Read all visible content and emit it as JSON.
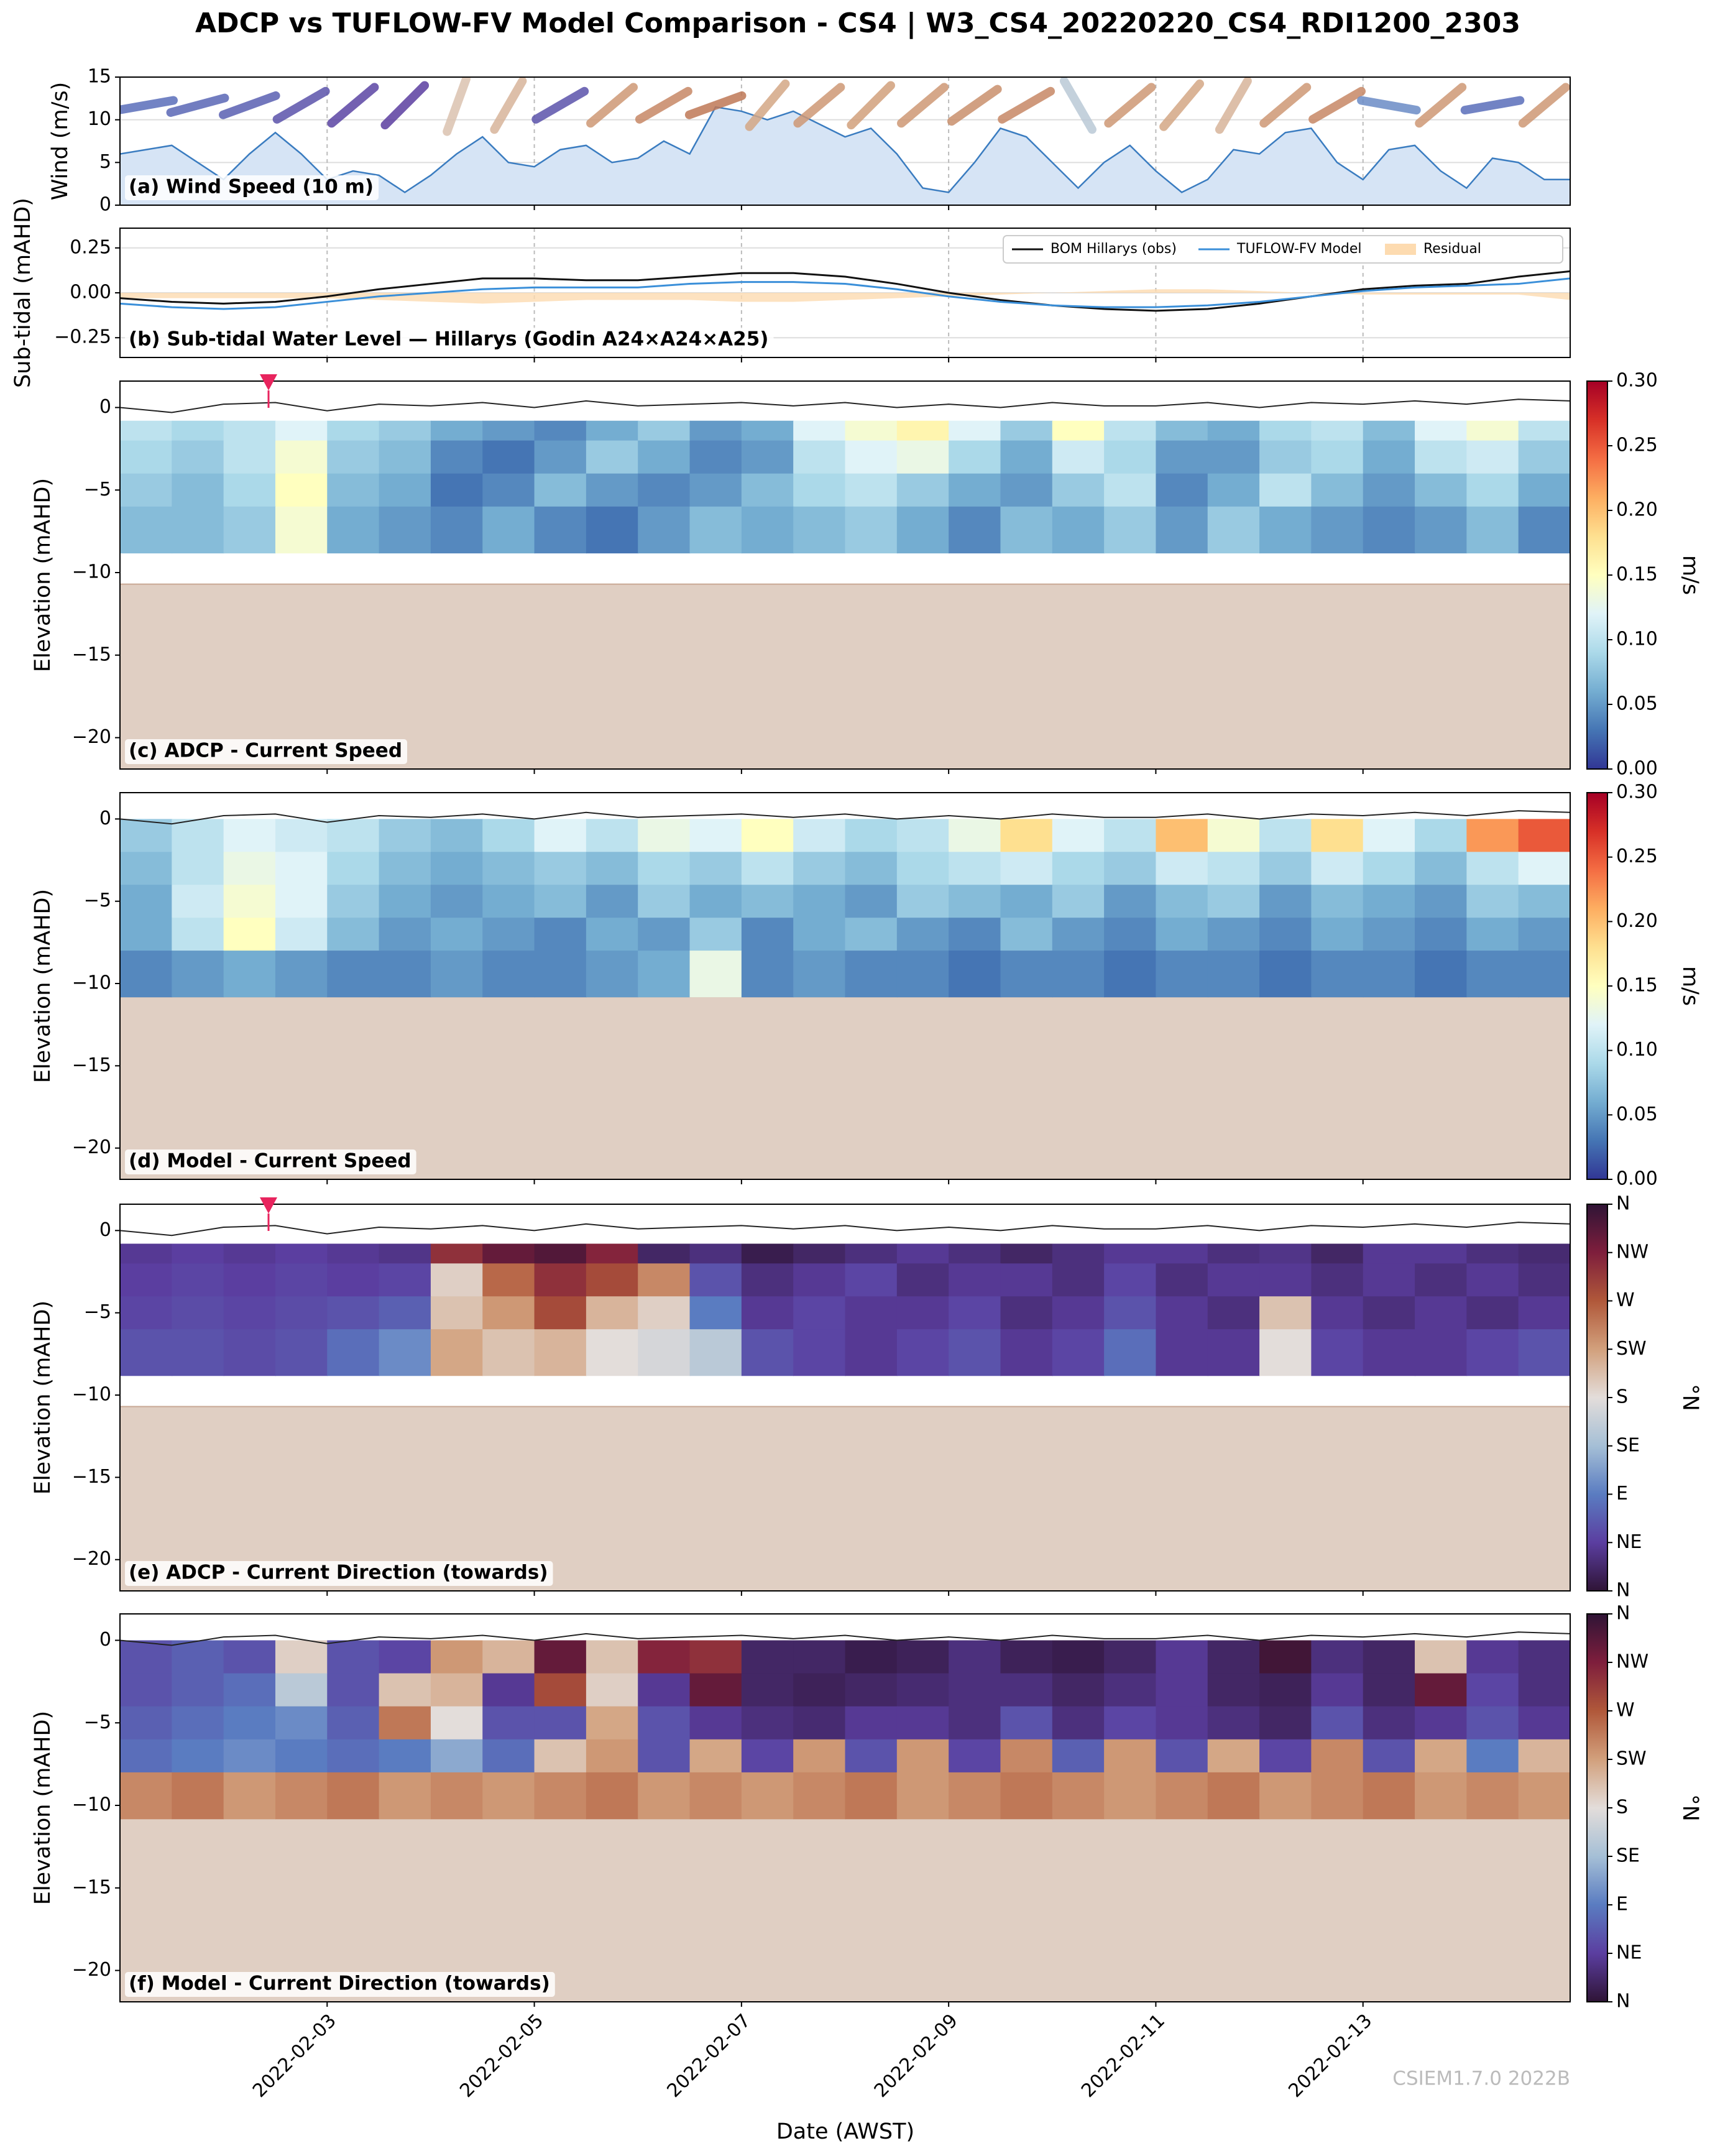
{
  "title": "ADCP vs TUFLOW-FV Model Comparison - CS4 | W3_CS4_20220220_CS4_RDI1200_2303",
  "xlabel": "Date (AWST)",
  "watermark": "CSIEM1.7.0 2022B",
  "xlim": [
    "2022-02-01",
    "2022-02-15"
  ],
  "xticks": [
    "2022-02-03",
    "2022-02-05",
    "2022-02-07",
    "2022-02-09",
    "2022-02-11",
    "2022-02-13"
  ],
  "surface": [
    0.0,
    -0.3,
    0.2,
    0.3,
    -0.2,
    0.2,
    0.1,
    0.3,
    0.0,
    0.4,
    0.1,
    0.2,
    0.3,
    0.1,
    0.3,
    0.0,
    0.2,
    0.0,
    0.3,
    0.1,
    0.1,
    0.3,
    0.0,
    0.3,
    0.2,
    0.4,
    0.2,
    0.5,
    0.4
  ],
  "chart_data": [
    {
      "type": "area",
      "label": "(a) Wind Speed (10 m)",
      "ylabel": "Wind (m/s)",
      "ylim": [
        0,
        15
      ],
      "yticks": [
        0,
        5,
        10,
        15
      ],
      "grid": true,
      "color": "#3a7cc0",
      "fill": "#d6e4f5",
      "values": [
        6,
        6.5,
        7,
        5,
        3,
        6,
        8.5,
        6,
        3,
        4,
        3.5,
        1.5,
        3.5,
        6,
        8,
        5,
        4.5,
        6.5,
        7,
        5,
        5.5,
        7.5,
        6,
        11.5,
        11,
        10,
        11,
        9.5,
        8,
        9,
        6,
        2,
        1.5,
        5,
        9,
        8,
        5,
        2,
        5,
        7,
        4,
        1.5,
        3,
        6.5,
        6,
        8.5,
        9,
        5,
        3,
        6.5,
        7,
        4,
        2,
        5.5,
        5,
        3,
        3
      ],
      "directions": [
        80,
        75,
        70,
        60,
        50,
        45,
        200,
        210,
        60,
        230,
        240,
        250,
        220,
        230,
        225,
        230,
        235,
        240,
        150,
        230,
        220,
        210,
        230,
        240,
        100,
        230,
        80,
        230
      ],
      "arrow_colormap": [
        "#2f1436",
        "#5b3ea0",
        "#5a7cc1",
        "#a5bfd6",
        "#e3ddda",
        "#d2a07c",
        "#b0583a",
        "#7e1e3c",
        "#2f1436"
      ]
    },
    {
      "type": "line",
      "label": "(b) Sub-tidal Water Level — Hillarys (Godin A24×A24×A25)",
      "ylabel": "Sub-tidal (mAHD)",
      "ylim": [
        -0.36,
        0.36
      ],
      "yticks": [
        {
          "value": -0.25,
          "label": "−0.25"
        },
        {
          "value": 0,
          "label": "0.00"
        },
        {
          "value": 0.25,
          "label": "0.25"
        }
      ],
      "grid": true,
      "legend": "upper right",
      "series": [
        {
          "name": "BOM Hillarys (obs)",
          "color": "#111111",
          "values": [
            -0.03,
            -0.05,
            -0.06,
            -0.05,
            -0.02,
            0.02,
            0.05,
            0.08,
            0.08,
            0.07,
            0.07,
            0.09,
            0.11,
            0.11,
            0.09,
            0.05,
            0.0,
            -0.04,
            -0.07,
            -0.09,
            -0.1,
            -0.09,
            -0.06,
            -0.02,
            0.02,
            0.04,
            0.05,
            0.09,
            0.12
          ]
        },
        {
          "name": "TUFLOW-FV Model",
          "color": "#3a8fd9",
          "values": [
            -0.06,
            -0.08,
            -0.09,
            -0.08,
            -0.05,
            -0.02,
            0.0,
            0.02,
            0.03,
            0.03,
            0.03,
            0.05,
            0.06,
            0.06,
            0.05,
            0.02,
            -0.02,
            -0.05,
            -0.07,
            -0.08,
            -0.08,
            -0.07,
            -0.05,
            -0.02,
            0.01,
            0.03,
            0.04,
            0.05,
            0.08
          ]
        },
        {
          "name": "Residual",
          "color": "#fddbb0",
          "style": "band",
          "values": [
            -0.03,
            -0.03,
            -0.03,
            -0.03,
            -0.03,
            -0.04,
            -0.05,
            -0.06,
            -0.05,
            -0.04,
            -0.04,
            -0.04,
            -0.05,
            -0.05,
            -0.04,
            -0.03,
            -0.02,
            -0.01,
            0.0,
            0.01,
            0.02,
            0.02,
            0.01,
            0.0,
            -0.01,
            -0.01,
            -0.01,
            -0.01,
            -0.04
          ]
        }
      ]
    },
    {
      "type": "heatmap",
      "label": "(c) ADCP - Current Speed",
      "ylabel": "Elevation (mAHD)",
      "ylim": [
        -21.9,
        1.6
      ],
      "yticks": [
        {
          "value": -20,
          "label": "−20"
        },
        {
          "value": -15,
          "label": "−15"
        },
        {
          "value": -10,
          "label": "−10"
        },
        {
          "value": -5,
          "label": "−5"
        },
        0
      ],
      "cell_edges": [
        -0.8,
        -2,
        -4,
        -6,
        -8.8
      ],
      "seabed": -10.7,
      "seabed_color": "#e0cfc3",
      "zlim": [
        0,
        0.3
      ],
      "colormap": [
        "#313695",
        "#4575b4",
        "#74add1",
        "#abd9e9",
        "#e0f3f8",
        "#ffffbf",
        "#fee090",
        "#fdae61",
        "#f46d43",
        "#d73027",
        "#a50026"
      ],
      "cbar_label": "m/s",
      "cbar_ticks": [
        {
          "value": 0,
          "label": "0.00"
        },
        {
          "value": 0.05,
          "label": "0.05"
        },
        {
          "value": 0.1,
          "label": "0.10"
        },
        {
          "value": 0.15,
          "label": "0.15"
        },
        {
          "value": 0.2,
          "label": "0.20"
        },
        {
          "value": 0.25,
          "label": "0.25"
        },
        {
          "value": 0.3,
          "label": "0.30"
        }
      ],
      "z": [
        [
          0.1,
          0.09,
          0.1,
          0.12,
          0.09,
          0.08,
          0.06,
          0.05,
          0.04,
          0.06,
          0.08,
          0.05,
          0.06,
          0.12,
          0.14,
          0.16,
          0.12,
          0.08,
          0.15,
          0.1,
          0.07,
          0.06,
          0.09,
          0.1,
          0.07,
          0.12,
          0.14,
          0.1
        ],
        [
          0.09,
          0.08,
          0.1,
          0.14,
          0.08,
          0.07,
          0.04,
          0.03,
          0.05,
          0.08,
          0.06,
          0.04,
          0.05,
          0.1,
          0.12,
          0.13,
          0.09,
          0.06,
          0.11,
          0.09,
          0.05,
          0.05,
          0.08,
          0.09,
          0.06,
          0.1,
          0.11,
          0.08
        ],
        [
          0.08,
          0.07,
          0.09,
          0.15,
          0.07,
          0.06,
          0.03,
          0.04,
          0.07,
          0.05,
          0.04,
          0.05,
          0.07,
          0.09,
          0.1,
          0.08,
          0.06,
          0.05,
          0.08,
          0.1,
          0.04,
          0.06,
          0.1,
          0.07,
          0.05,
          0.07,
          0.09,
          0.06
        ],
        [
          0.07,
          0.07,
          0.08,
          0.14,
          0.06,
          0.05,
          0.04,
          0.06,
          0.04,
          0.03,
          0.05,
          0.07,
          0.06,
          0.07,
          0.08,
          0.06,
          0.04,
          0.07,
          0.06,
          0.08,
          0.05,
          0.08,
          0.06,
          0.05,
          0.04,
          0.05,
          0.07,
          0.04
        ]
      ]
    },
    {
      "type": "heatmap",
      "label": "(d) Model - Current Speed",
      "ylabel": "Elevation (mAHD)",
      "ylim": [
        -21.9,
        1.6
      ],
      "yticks": [
        {
          "value": -20,
          "label": "−20"
        },
        {
          "value": -15,
          "label": "−15"
        },
        {
          "value": -10,
          "label": "−10"
        },
        {
          "value": -5,
          "label": "−5"
        },
        0
      ],
      "cell_edges": [
        0,
        -2,
        -4,
        -6,
        -8,
        -10.8
      ],
      "seabed": -10.8,
      "seabed_color": "#e0cfc3",
      "zlim": [
        0,
        0.3
      ],
      "colormap": [
        "#313695",
        "#4575b4",
        "#74add1",
        "#abd9e9",
        "#e0f3f8",
        "#ffffbf",
        "#fee090",
        "#fdae61",
        "#f46d43",
        "#d73027",
        "#a50026"
      ],
      "cbar_label": "m/s",
      "cbar_ticks": [
        {
          "value": 0,
          "label": "0.00"
        },
        {
          "value": 0.05,
          "label": "0.05"
        },
        {
          "value": 0.1,
          "label": "0.10"
        },
        {
          "value": 0.15,
          "label": "0.15"
        },
        {
          "value": 0.2,
          "label": "0.20"
        },
        {
          "value": 0.25,
          "label": "0.25"
        },
        {
          "value": 0.3,
          "label": "0.30"
        }
      ],
      "z": [
        [
          0.08,
          0.1,
          0.12,
          0.11,
          0.1,
          0.08,
          0.07,
          0.09,
          0.12,
          0.1,
          0.13,
          0.12,
          0.15,
          0.11,
          0.09,
          0.1,
          0.13,
          0.18,
          0.12,
          0.1,
          0.2,
          0.14,
          0.1,
          0.18,
          0.12,
          0.09,
          0.22,
          0.25
        ],
        [
          0.07,
          0.1,
          0.13,
          0.12,
          0.09,
          0.07,
          0.06,
          0.07,
          0.08,
          0.07,
          0.09,
          0.08,
          0.1,
          0.08,
          0.07,
          0.09,
          0.1,
          0.11,
          0.09,
          0.08,
          0.11,
          0.1,
          0.08,
          0.11,
          0.09,
          0.07,
          0.1,
          0.12
        ],
        [
          0.06,
          0.11,
          0.14,
          0.12,
          0.08,
          0.06,
          0.05,
          0.06,
          0.07,
          0.05,
          0.08,
          0.06,
          0.07,
          0.06,
          0.05,
          0.08,
          0.07,
          0.06,
          0.08,
          0.05,
          0.07,
          0.08,
          0.05,
          0.07,
          0.06,
          0.05,
          0.08,
          0.07
        ],
        [
          0.06,
          0.1,
          0.15,
          0.11,
          0.07,
          0.05,
          0.06,
          0.05,
          0.04,
          0.06,
          0.05,
          0.08,
          0.04,
          0.06,
          0.07,
          0.05,
          0.04,
          0.07,
          0.05,
          0.04,
          0.06,
          0.05,
          0.04,
          0.06,
          0.05,
          0.04,
          0.06,
          0.05
        ],
        [
          0.04,
          0.05,
          0.06,
          0.05,
          0.04,
          0.04,
          0.05,
          0.04,
          0.04,
          0.05,
          0.06,
          0.13,
          0.04,
          0.05,
          0.04,
          0.04,
          0.03,
          0.04,
          0.04,
          0.03,
          0.04,
          0.04,
          0.03,
          0.04,
          0.04,
          0.03,
          0.04,
          0.04
        ]
      ]
    },
    {
      "type": "heatmap",
      "label": "(e) ADCP - Current Direction (towards)",
      "ylabel": "Elevation (mAHD)",
      "ylim": [
        -21.9,
        1.6
      ],
      "yticks": [
        {
          "value": -20,
          "label": "−20"
        },
        {
          "value": -15,
          "label": "−15"
        },
        {
          "value": -10,
          "label": "−10"
        },
        {
          "value": -5,
          "label": "−5"
        },
        0
      ],
      "cell_edges": [
        -0.8,
        -2,
        -4,
        -6,
        -8.8
      ],
      "seabed": -10.7,
      "seabed_color": "#e0cfc3",
      "zlim": [
        0,
        360
      ],
      "colormap": [
        "#2f1436",
        "#5b3ea0",
        "#5a7cc1",
        "#a5bfd6",
        "#e3ddda",
        "#d2a07c",
        "#b0583a",
        "#7e1e3c",
        "#2f1436"
      ],
      "cbar_label": "°N",
      "cbar_ticks": [
        {
          "value": 0,
          "label": "N"
        },
        {
          "value": 45,
          "label": "NE"
        },
        {
          "value": 90,
          "label": "E"
        },
        {
          "value": 135,
          "label": "SE"
        },
        {
          "value": 180,
          "label": "S"
        },
        {
          "value": 225,
          "label": "SW"
        },
        {
          "value": 270,
          "label": "W"
        },
        {
          "value": 315,
          "label": "NW"
        },
        {
          "value": 360,
          "label": "N"
        }
      ],
      "z": [
        [
          40,
          45,
          40,
          45,
          40,
          35,
          300,
          330,
          340,
          310,
          20,
          30,
          10,
          20,
          30,
          40,
          30,
          20,
          30,
          40,
          40,
          30,
          35,
          20,
          40,
          40,
          30,
          25
        ],
        [
          45,
          50,
          45,
          50,
          45,
          50,
          190,
          260,
          300,
          280,
          240,
          60,
          30,
          40,
          50,
          30,
          40,
          40,
          30,
          50,
          30,
          40,
          40,
          30,
          40,
          30,
          40,
          30
        ],
        [
          50,
          55,
          50,
          55,
          60,
          70,
          200,
          230,
          280,
          210,
          190,
          90,
          40,
          50,
          40,
          40,
          50,
          30,
          40,
          60,
          40,
          30,
          200,
          40,
          30,
          40,
          30,
          40
        ],
        [
          60,
          60,
          55,
          60,
          80,
          100,
          220,
          200,
          210,
          180,
          170,
          150,
          60,
          50,
          40,
          50,
          60,
          40,
          50,
          80,
          40,
          40,
          180,
          50,
          40,
          40,
          50,
          60
        ]
      ]
    },
    {
      "type": "heatmap",
      "label": "(f) Model - Current Direction (towards)",
      "ylabel": "Elevation (mAHD)",
      "ylim": [
        -21.9,
        1.6
      ],
      "yticks": [
        {
          "value": -20,
          "label": "−20"
        },
        {
          "value": -15,
          "label": "−15"
        },
        {
          "value": -10,
          "label": "−10"
        },
        {
          "value": -5,
          "label": "−5"
        },
        0
      ],
      "cell_edges": [
        0,
        -2,
        -4,
        -6,
        -8,
        -10.8
      ],
      "seabed": -10.8,
      "seabed_color": "#e0cfc3",
      "zlim": [
        0,
        360
      ],
      "colormap": [
        "#2f1436",
        "#5b3ea0",
        "#5a7cc1",
        "#a5bfd6",
        "#e3ddda",
        "#d2a07c",
        "#b0583a",
        "#7e1e3c",
        "#2f1436"
      ],
      "cbar_label": "°N",
      "cbar_ticks": [
        {
          "value": 0,
          "label": "N"
        },
        {
          "value": 45,
          "label": "NE"
        },
        {
          "value": 90,
          "label": "E"
        },
        {
          "value": 135,
          "label": "SE"
        },
        {
          "value": 180,
          "label": "S"
        },
        {
          "value": 225,
          "label": "SW"
        },
        {
          "value": 270,
          "label": "W"
        },
        {
          "value": 315,
          "label": "NW"
        },
        {
          "value": 360,
          "label": "N"
        }
      ],
      "z": [
        [
          60,
          70,
          60,
          190,
          60,
          50,
          230,
          210,
          330,
          200,
          310,
          300,
          20,
          20,
          10,
          15,
          30,
          15,
          10,
          20,
          40,
          20,
          350,
          30,
          20,
          200,
          40,
          30
        ],
        [
          60,
          70,
          80,
          150,
          60,
          200,
          210,
          40,
          280,
          190,
          40,
          330,
          20,
          15,
          20,
          25,
          30,
          30,
          20,
          30,
          40,
          20,
          15,
          40,
          20,
          330,
          50,
          30
        ],
        [
          70,
          80,
          90,
          100,
          70,
          250,
          180,
          60,
          60,
          220,
          60,
          40,
          30,
          25,
          40,
          40,
          30,
          60,
          30,
          50,
          40,
          30,
          20,
          60,
          30,
          40,
          60,
          40
        ],
        [
          80,
          90,
          100,
          90,
          80,
          90,
          120,
          80,
          200,
          230,
          60,
          220,
          50,
          230,
          60,
          230,
          50,
          240,
          70,
          230,
          60,
          220,
          50,
          240,
          60,
          220,
          90,
          210
        ],
        [
          240,
          250,
          230,
          240,
          250,
          230,
          240,
          230,
          240,
          250,
          230,
          240,
          230,
          240,
          250,
          230,
          240,
          250,
          240,
          230,
          240,
          250,
          230,
          240,
          250,
          230,
          240,
          230
        ]
      ]
    }
  ]
}
